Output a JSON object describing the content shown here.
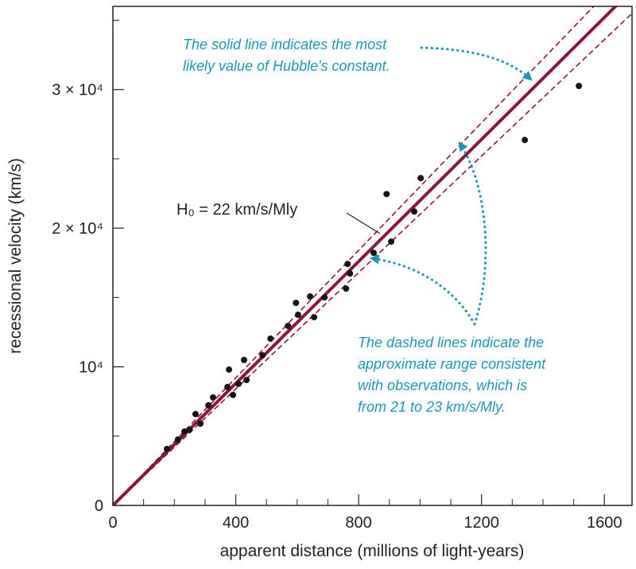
{
  "chart_data": {
    "type": "scatter",
    "xlabel": "apparent distance (millions of light-years)",
    "ylabel": "recessional velocity (km/s)",
    "xlim": [
      0,
      1690
    ],
    "ylim": [
      0,
      36000
    ],
    "xticks": [
      0,
      400,
      800,
      1200,
      1600
    ],
    "yticks": [
      0,
      {
        "value": 10000,
        "label": "10⁴"
      },
      {
        "value": 20000,
        "label": "2 × 10⁴"
      },
      {
        "value": 30000,
        "label": "3 × 10⁴"
      }
    ],
    "xminorticks": [
      100,
      200,
      300,
      500,
      600,
      700,
      900,
      1000,
      1100,
      1300,
      1400,
      1500
    ],
    "yminorticks": [
      5000,
      15000,
      25000,
      35000
    ],
    "point_color": "#151515",
    "x": [
      176,
      212,
      233,
      249,
      269,
      285,
      311,
      326,
      373,
      378,
      391,
      409,
      427,
      435,
      487,
      513,
      570,
      596,
      603,
      642,
      655,
      689,
      759,
      764,
      772,
      849,
      891,
      906,
      981,
      1002,
      1341,
      1517
    ],
    "values": [
      4070,
      4760,
      5330,
      5440,
      6590,
      5900,
      7220,
      7790,
      8540,
      9800,
      7970,
      8770,
      10490,
      9050,
      10830,
      12030,
      12950,
      14610,
      13750,
      15070,
      13580,
      15010,
      15640,
      17420,
      16730,
      18220,
      22460,
      19030,
      21200,
      23610,
      26360,
      30260
    ],
    "fit_lines": [
      {
        "slope": 22,
        "style": "solid",
        "color": "#8c1538"
      },
      {
        "slope": 21,
        "style": "dashed",
        "color": "#8c1538"
      },
      {
        "slope": 23,
        "style": "dashed",
        "color": "#8c1538"
      }
    ],
    "fit_label": "H₀ = 22 km/s/Mly",
    "annotations": [
      {
        "lines": [
          "The solid line indicates the most",
          "likely value of Hubble's constant."
        ],
        "color": "#1b97b6"
      },
      {
        "lines": [
          "The dashed lines indicate the",
          "approximate range consistent",
          "with observations, which is",
          "from 21 to 23 km/s/Mly."
        ],
        "color": "#1b97b6"
      }
    ]
  }
}
